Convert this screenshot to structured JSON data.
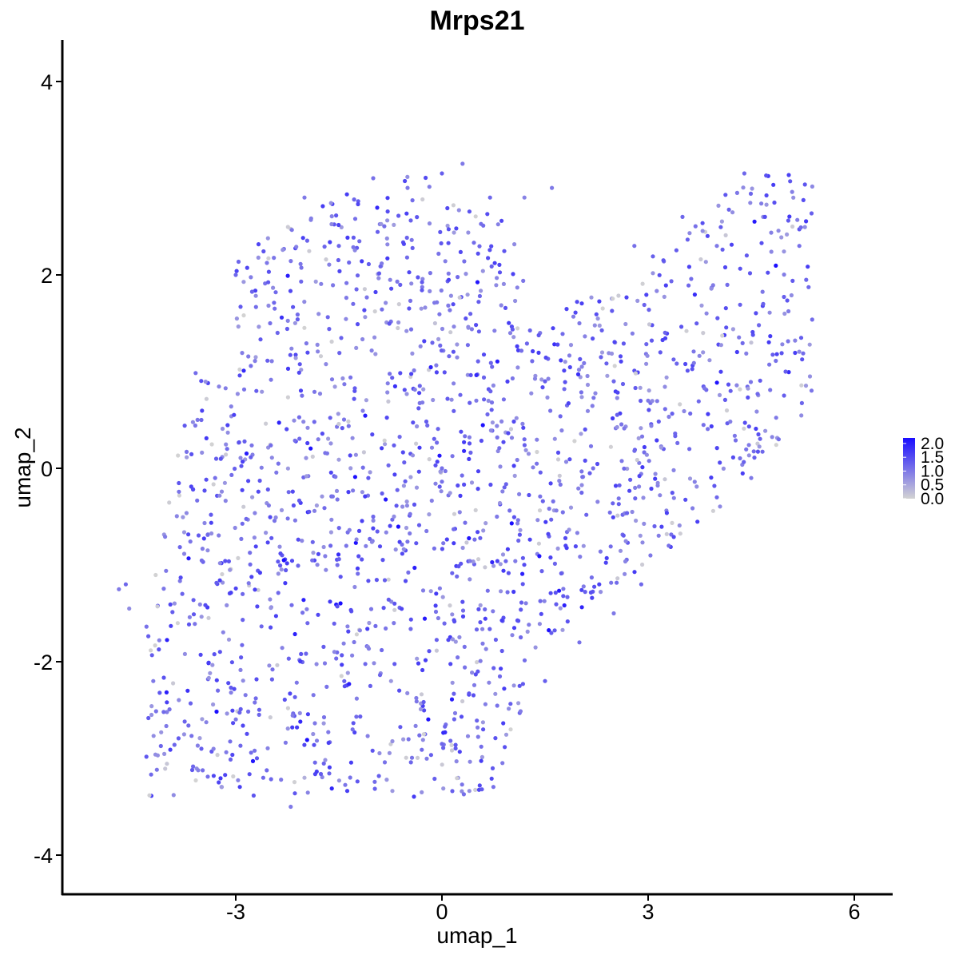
{
  "chart_data": {
    "type": "scatter",
    "title": "Mrps21",
    "xlabel": "umap_1",
    "ylabel": "umap_2",
    "xlim": [
      -5.9,
      6.6
    ],
    "ylim": [
      -4.4,
      4.4
    ],
    "xticks": [
      -3,
      0,
      3,
      6
    ],
    "yticks": [
      -4,
      -2,
      0,
      2,
      4
    ],
    "grid": false,
    "legend": {
      "position": "right",
      "type": "colorbar",
      "labels": [
        "2.0",
        "1.5",
        "1.0",
        "0.5",
        "0.0"
      ],
      "values": [
        2.0,
        1.5,
        1.0,
        0.5,
        0.0
      ],
      "range": [
        0,
        2.2
      ]
    },
    "colors": {
      "low": "#d3d3d3",
      "high": "#1a0dff",
      "axis": "#000000"
    },
    "n_points": 1800,
    "series": [
      {
        "sample_points": [
          [
            -4.7,
            -1.25,
            1.0
          ],
          [
            -4.6,
            -1.2,
            1.2
          ],
          [
            -4.55,
            -1.45,
            0.8
          ],
          [
            -4.2,
            -2.2,
            1.0
          ],
          [
            -3.7,
            -2.3,
            1.8
          ],
          [
            -3.5,
            -2.9,
            1.3
          ],
          [
            -2.9,
            -1.3,
            1.2
          ],
          [
            -2.6,
            -3.2,
            1.2
          ],
          [
            -2.2,
            -3.5,
            1.0
          ],
          [
            -2.3,
            -0.95,
            2.2
          ],
          [
            -2.0,
            -3.2,
            0.4
          ],
          [
            -1.3,
            -2.7,
            1.1
          ],
          [
            -0.7,
            -1.6,
            1.0
          ],
          [
            0.0,
            -2.85,
            1.2
          ],
          [
            0.6,
            -2.7,
            1.4
          ],
          [
            1.0,
            -2.7,
            0.0
          ],
          [
            -3.0,
            2.0,
            1.2
          ],
          [
            -2.5,
            1.5,
            1.1
          ],
          [
            -2.0,
            2.8,
            1.0
          ],
          [
            -1.5,
            2.3,
            1.2
          ],
          [
            -1.0,
            3.0,
            1.1
          ],
          [
            -0.5,
            2.9,
            1.0
          ],
          [
            0.0,
            3.05,
            1.3
          ],
          [
            0.3,
            3.15,
            1.0
          ],
          [
            0.7,
            2.8,
            1.2
          ],
          [
            1.2,
            2.8,
            0.9
          ],
          [
            1.6,
            2.9,
            1.0
          ],
          [
            -0.1,
            1.5,
            0.2
          ],
          [
            0.5,
            0.7,
            1.0
          ],
          [
            1.5,
            0.9,
            1.3
          ],
          [
            2.0,
            1.5,
            1.0
          ],
          [
            2.5,
            0.9,
            1.2
          ],
          [
            2.8,
            2.3,
            1.1
          ],
          [
            3.5,
            2.6,
            1.2
          ],
          [
            4.0,
            2.3,
            1.0
          ],
          [
            4.4,
            3.05,
            1.2
          ],
          [
            4.7,
            2.6,
            1.5
          ],
          [
            5.2,
            2.3,
            1.1
          ],
          [
            5.3,
            1.95,
            1.2
          ],
          [
            5.0,
            1.0,
            1.3
          ],
          [
            4.9,
            0.3,
            1.1
          ],
          [
            4.5,
            -0.1,
            1.0
          ],
          [
            4.0,
            -0.3,
            1.2
          ],
          [
            3.3,
            -0.8,
            1.1
          ],
          [
            2.9,
            -1.2,
            1.2
          ],
          [
            2.5,
            -1.5,
            1.0
          ],
          [
            2.0,
            -1.8,
            1.1
          ],
          [
            1.5,
            -2.2,
            1.3
          ],
          [
            1.8,
            -0.8,
            1.6
          ],
          [
            3.8,
            1.4,
            0.1
          ],
          [
            4.5,
            1.3,
            0.2
          ],
          [
            5.1,
            2.5,
            0.1
          ],
          [
            -3.5,
            0.5,
            1.2
          ],
          [
            -3.3,
            -0.1,
            1.1
          ],
          [
            -2.7,
            0.8,
            1.3
          ],
          [
            -1.8,
            0.3,
            1.0
          ],
          [
            -1.0,
            -0.5,
            1.2
          ],
          [
            0.0,
            0.0,
            1.1
          ],
          [
            0.8,
            -0.5,
            1.0
          ],
          [
            1.2,
            0.3,
            1.2
          ],
          [
            2.2,
            0.0,
            1.1
          ],
          [
            3.0,
            0.7,
            1.0
          ],
          [
            3.6,
            0.2,
            1.2
          ],
          [
            4.2,
            0.8,
            1.3
          ]
        ]
      }
    ]
  }
}
